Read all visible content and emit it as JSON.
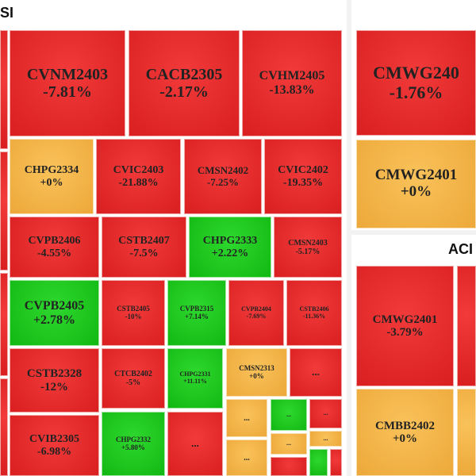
{
  "panels": [
    {
      "title": "SI",
      "tiles": [
        {
          "label": "CVNM2403",
          "change": "-7.81%",
          "color": "red"
        },
        {
          "label": "CACB2305",
          "change": "-2.17%",
          "color": "red"
        },
        {
          "label": "CVHM2405",
          "change": "-13.83%",
          "color": "red"
        },
        {
          "label": "CHPG2334",
          "change": "+0%",
          "color": "amber"
        },
        {
          "label": "CVIC2403",
          "change": "-21.88%",
          "color": "red"
        },
        {
          "label": "CMSN2402",
          "change": "-7.25%",
          "color": "red"
        },
        {
          "label": "CVIC2402",
          "change": "-19.35%",
          "color": "red"
        },
        {
          "label": "CVPB2406",
          "change": "-4.55%",
          "color": "red"
        },
        {
          "label": "CSTB2407",
          "change": "-7.5%",
          "color": "red"
        },
        {
          "label": "CHPG2333",
          "change": "+2.22%",
          "color": "green"
        },
        {
          "label": "CMSN2403",
          "change": "-5.17%",
          "color": "red"
        },
        {
          "label": "CVPB2405",
          "change": "+2.78%",
          "color": "green"
        },
        {
          "label": "CSTB2405",
          "change": "-10%",
          "color": "red"
        },
        {
          "label": "CVPB2315",
          "change": "+7.14%",
          "color": "green"
        },
        {
          "label": "CVPB2404",
          "change": "-7.69%",
          "color": "red"
        },
        {
          "label": "CSTB2406",
          "change": "-11.36%",
          "color": "red"
        },
        {
          "label": "CSTB2328",
          "change": "-12%",
          "color": "red"
        },
        {
          "label": "CTCB2402",
          "change": "-5%",
          "color": "red"
        },
        {
          "label": "CHPG2331",
          "change": "+11.11%",
          "color": "green"
        },
        {
          "label": "CMSN2313",
          "change": "+0%",
          "color": "amber"
        },
        {
          "label": "...",
          "color": "red"
        },
        {
          "label": "CVIB2305",
          "change": "-6.98%",
          "color": "red"
        },
        {
          "label": "CHPG2332",
          "change": "+5.80%",
          "color": "green"
        },
        {
          "label": "...",
          "color": "red"
        },
        {
          "label": "...",
          "color": "amber"
        },
        {
          "label": "...",
          "color": "amber"
        },
        {
          "label": "...",
          "color": "green"
        },
        {
          "label": "...",
          "color": "red"
        },
        {
          "label": "...",
          "color": "amber"
        },
        {
          "label": "...",
          "color": "amber"
        }
      ]
    },
    {
      "title": "ACI",
      "tiles": [
        {
          "label": "CMWG2401",
          "change": "-3.79%",
          "color": "red"
        },
        {
          "label": "CMBB2402",
          "change": "+0%",
          "color": "amber"
        }
      ]
    },
    {
      "tiles": [
        {
          "label": "CMWG240",
          "change": "-1.76%",
          "color": "red"
        },
        {
          "label": "CMWG2401",
          "change": "+0%",
          "color": "amber"
        }
      ]
    }
  ]
}
